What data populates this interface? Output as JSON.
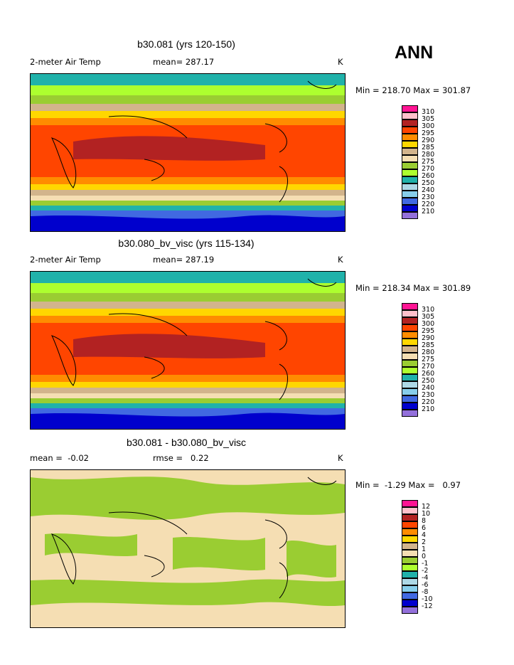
{
  "season": "ANN",
  "panels": [
    {
      "title": "b30.081 (yrs 120-150)",
      "left_label": "2-meter Air Temp",
      "center_label": "mean= 287.17",
      "right_label": "K",
      "minmax": "Min = 218.70 Max = 301.87",
      "colorbar_labels": [
        "310",
        "305",
        "300",
        "295",
        "290",
        "285",
        "280",
        "275",
        "270",
        "260",
        "250",
        "240",
        "230",
        "220",
        "210"
      ]
    },
    {
      "title": "b30.080_bv_visc (yrs 115-134)",
      "left_label": "2-meter Air Temp",
      "center_label": "mean= 287.19",
      "right_label": "K",
      "minmax": "Min = 218.34 Max = 301.89",
      "colorbar_labels": [
        "310",
        "305",
        "300",
        "295",
        "290",
        "285",
        "280",
        "275",
        "270",
        "260",
        "250",
        "240",
        "230",
        "220",
        "210"
      ]
    },
    {
      "title": "b30.081 - b30.080_bv_visc",
      "left_label": "mean =  -0.02",
      "center_label": "rmse =   0.22",
      "right_label": "K",
      "minmax": "Min =  -1.29 Max =   0.97",
      "colorbar_labels": [
        "12",
        "10",
        "8",
        "6",
        "4",
        "2",
        "1",
        "0",
        "-1",
        "-2",
        "-4",
        "-6",
        "-8",
        "-10",
        "-12"
      ]
    }
  ],
  "colors": {
    "colorbar": [
      "#ff1493",
      "#ffc0cb",
      "#b22222",
      "#ff4500",
      "#ff8c00",
      "#ffd700",
      "#d2b48c",
      "#f5deb3",
      "#9acd32",
      "#adff2f",
      "#20b2aa",
      "#add8e6",
      "#87ceeb",
      "#4169e1",
      "#0000cd",
      "#9370db"
    ]
  }
}
